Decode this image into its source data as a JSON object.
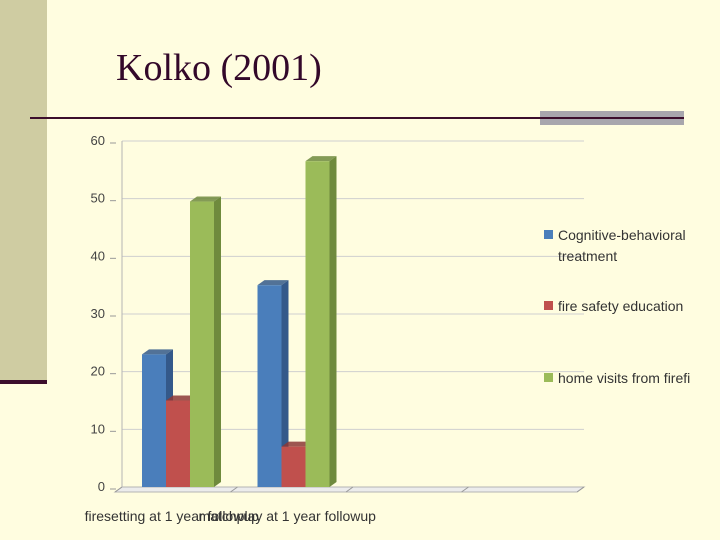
{
  "slide": {
    "title": "Kolko (2001)"
  },
  "colors": {
    "background": "#fffde0",
    "left_band": "#cfcca2",
    "rule": "#3c0e2c",
    "rule_accent": "#a8a6ad",
    "title_text": "#33082a"
  },
  "chart_data": {
    "type": "bar",
    "style": "3d-clustered-column",
    "categories": [
      "firesetting at 1 year followup",
      "matchplay at 1 year followup",
      "",
      ""
    ],
    "series": [
      {
        "name": "Cognitive-behavioral treatment",
        "values": [
          23,
          35,
          null,
          null
        ],
        "color": "#4a7ebb",
        "side_color": "#34598a",
        "legend_lines": [
          "Cognitive-behavioral",
          "treatment"
        ]
      },
      {
        "name": "fire safety education",
        "values": [
          15,
          7,
          null,
          null
        ],
        "color": "#c0504d",
        "side_color": "#8c3836",
        "legend_lines": [
          "fire safety education"
        ]
      },
      {
        "name": "home visits from firefi",
        "values": [
          49.5,
          56.5,
          null,
          null
        ],
        "color": "#9bbb59",
        "side_color": "#6f8a3d",
        "legend_lines": [
          "home visits from firefi"
        ]
      }
    ],
    "y_ticks": [
      "0",
      "10",
      "20",
      "30",
      "40",
      "50",
      "60"
    ],
    "ylim": [
      0,
      60
    ],
    "grid": true,
    "legend_position": "right",
    "title": "",
    "xlabel": "",
    "ylabel": ""
  }
}
